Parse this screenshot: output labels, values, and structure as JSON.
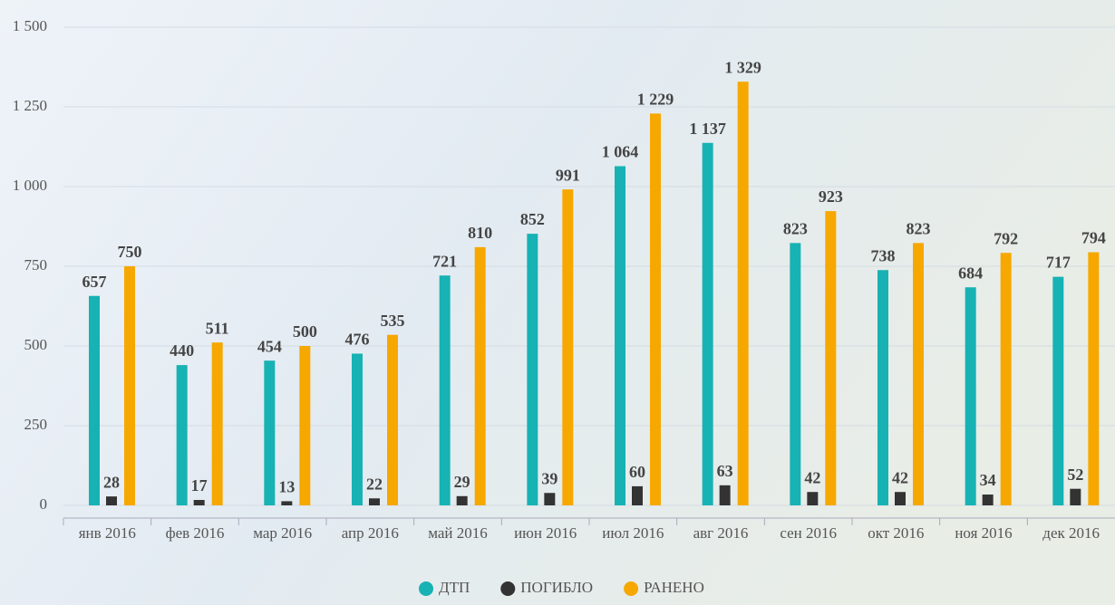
{
  "chart_data": {
    "type": "bar",
    "categories": [
      "янв 2016",
      "фев 2016",
      "мар 2016",
      "апр 2016",
      "май 2016",
      "июн 2016",
      "июл 2016",
      "авг 2016",
      "сен 2016",
      "окт 2016",
      "ноя 2016",
      "дек 2016"
    ],
    "series": [
      {
        "name": "ДТП",
        "color": "#17b2b4",
        "values": [
          657,
          440,
          454,
          476,
          721,
          852,
          1064,
          1137,
          823,
          738,
          684,
          717
        ],
        "value_labels": [
          "657",
          "440",
          "454",
          "476",
          "721",
          "852",
          "1 064",
          "1 137",
          "823",
          "738",
          "684",
          "717"
        ]
      },
      {
        "name": "ПОГИБЛО",
        "color": "#333333",
        "values": [
          28,
          17,
          13,
          22,
          29,
          39,
          60,
          63,
          42,
          42,
          34,
          52
        ]
      },
      {
        "name": "РАНЕНО",
        "color": "#f6a800",
        "values": [
          750,
          511,
          500,
          535,
          810,
          991,
          1229,
          1329,
          923,
          823,
          792,
          794
        ],
        "value_labels": [
          "750",
          "511",
          "500",
          "535",
          "810",
          "991",
          "1 229",
          "1 329",
          "923",
          "823",
          "792",
          "794"
        ]
      }
    ],
    "ylim": [
      0,
      1500
    ],
    "yticks": [
      0,
      250,
      500,
      750,
      {
        "value": 1000,
        "label": "1 000"
      },
      {
        "value": 1250,
        "label": "1 250"
      },
      {
        "value": 1500,
        "label": "1 500"
      }
    ],
    "grid": true,
    "legend": "bottom"
  }
}
